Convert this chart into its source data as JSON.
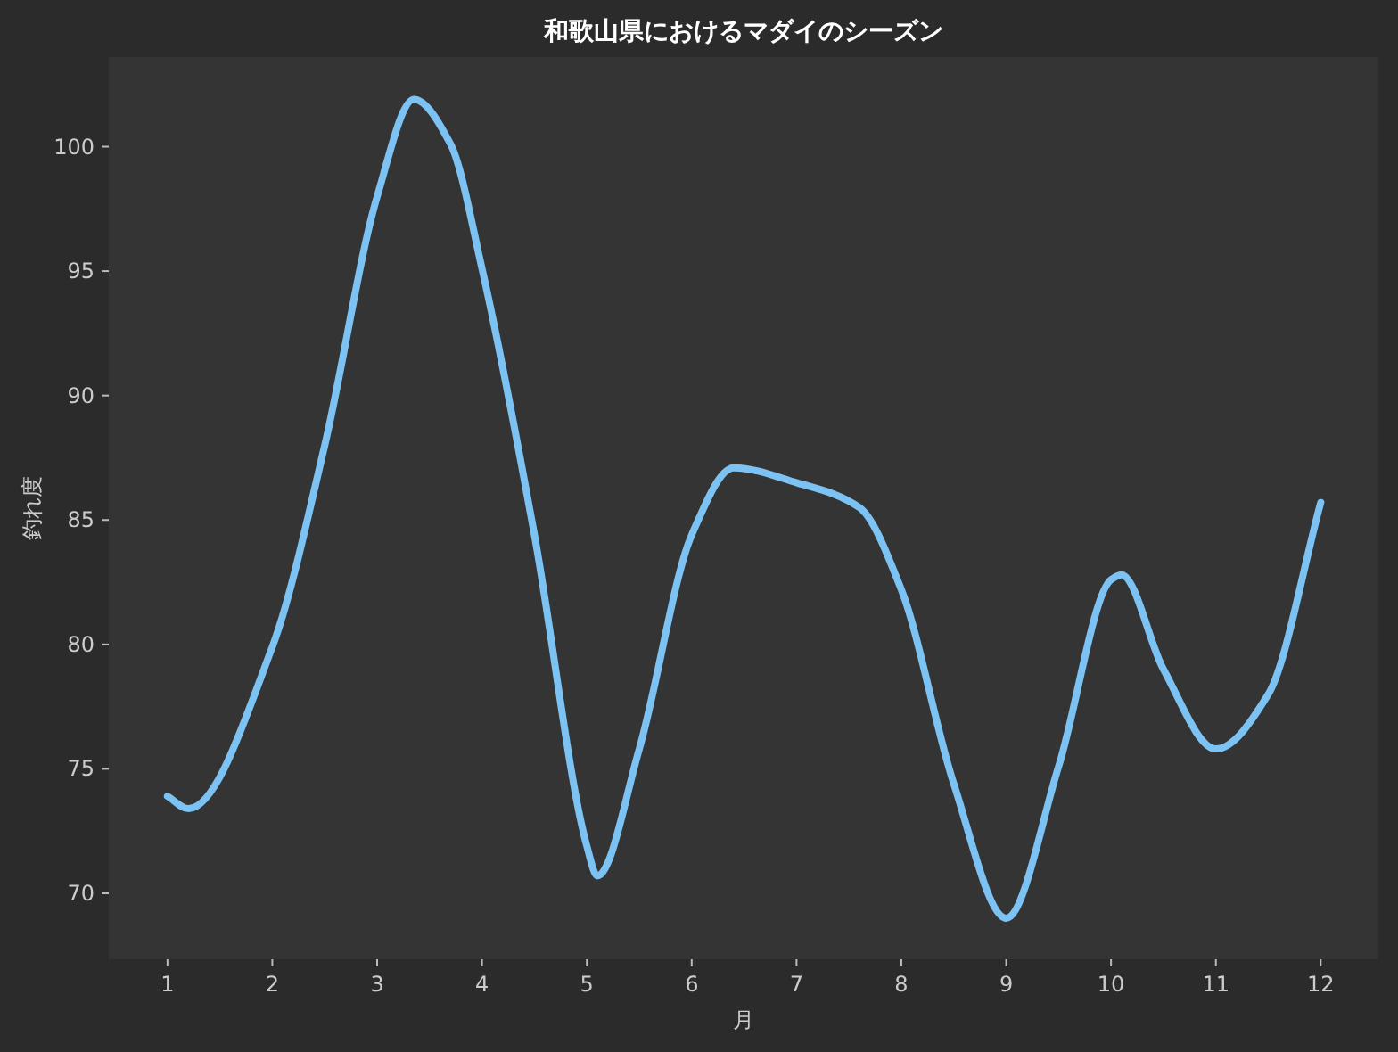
{
  "chart_data": {
    "type": "line",
    "title": "和歌山県におけるマダイのシーズン",
    "xlabel": "月",
    "ylabel": "釣れ度",
    "series": [
      {
        "color": "#7cc3f3",
        "x": [
          1,
          1.2,
          2,
          2.5,
          3,
          3.35,
          3.7,
          4,
          4.5,
          5,
          5.1,
          5.5,
          6,
          6.4,
          7,
          7.6,
          8,
          8.5,
          9,
          9.5,
          10,
          10.1,
          10.5,
          11,
          11.5,
          12
        ],
        "values": [
          73.9,
          73.4,
          79.9,
          88.0,
          98.0,
          101.9,
          100.1,
          95.1,
          84.4,
          71.9,
          70.7,
          75.8,
          84.4,
          87.1,
          86.5,
          85.5,
          82.2,
          74.4,
          69.0,
          75.1,
          82.6,
          82.8,
          79.0,
          75.8,
          78.0,
          85.7
        ]
      }
    ],
    "xlim": [
      0.44,
      12.55
    ],
    "ylim": [
      67.35,
      103.6
    ],
    "xticks": [
      1,
      2,
      3,
      4,
      5,
      6,
      7,
      8,
      9,
      10,
      11,
      12
    ],
    "yticks": [
      70,
      75,
      80,
      85,
      90,
      95,
      100
    ],
    "grid": false,
    "marker": "none",
    "line_style": "solid"
  }
}
